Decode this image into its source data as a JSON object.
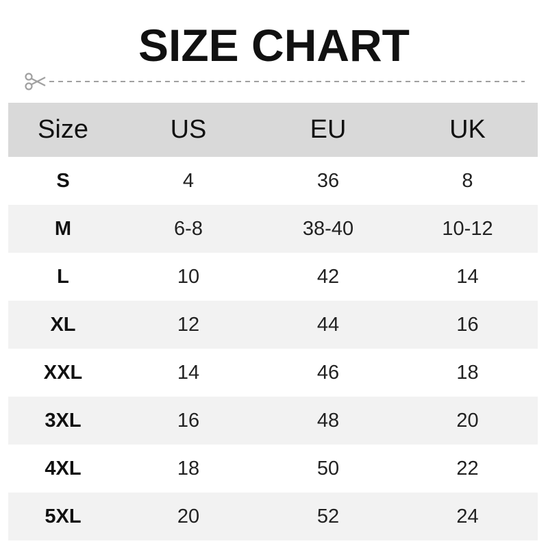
{
  "title": "SIZE CHART",
  "cut_icon": "scissors-icon",
  "colors": {
    "header_bg": "#d9d9d9",
    "alt_row_bg": "#f2f2f2",
    "cutline": "#a0a0a0"
  },
  "table": {
    "headers": [
      "Size",
      "US",
      "EU",
      "UK"
    ],
    "rows": [
      [
        "S",
        "4",
        "36",
        "8"
      ],
      [
        "M",
        "6-8",
        "38-40",
        "10-12"
      ],
      [
        "L",
        "10",
        "42",
        "14"
      ],
      [
        "XL",
        "12",
        "44",
        "16"
      ],
      [
        "XXL",
        "14",
        "46",
        "18"
      ],
      [
        "3XL",
        "16",
        "48",
        "20"
      ],
      [
        "4XL",
        "18",
        "50",
        "22"
      ],
      [
        "5XL",
        "20",
        "52",
        "24"
      ]
    ]
  }
}
